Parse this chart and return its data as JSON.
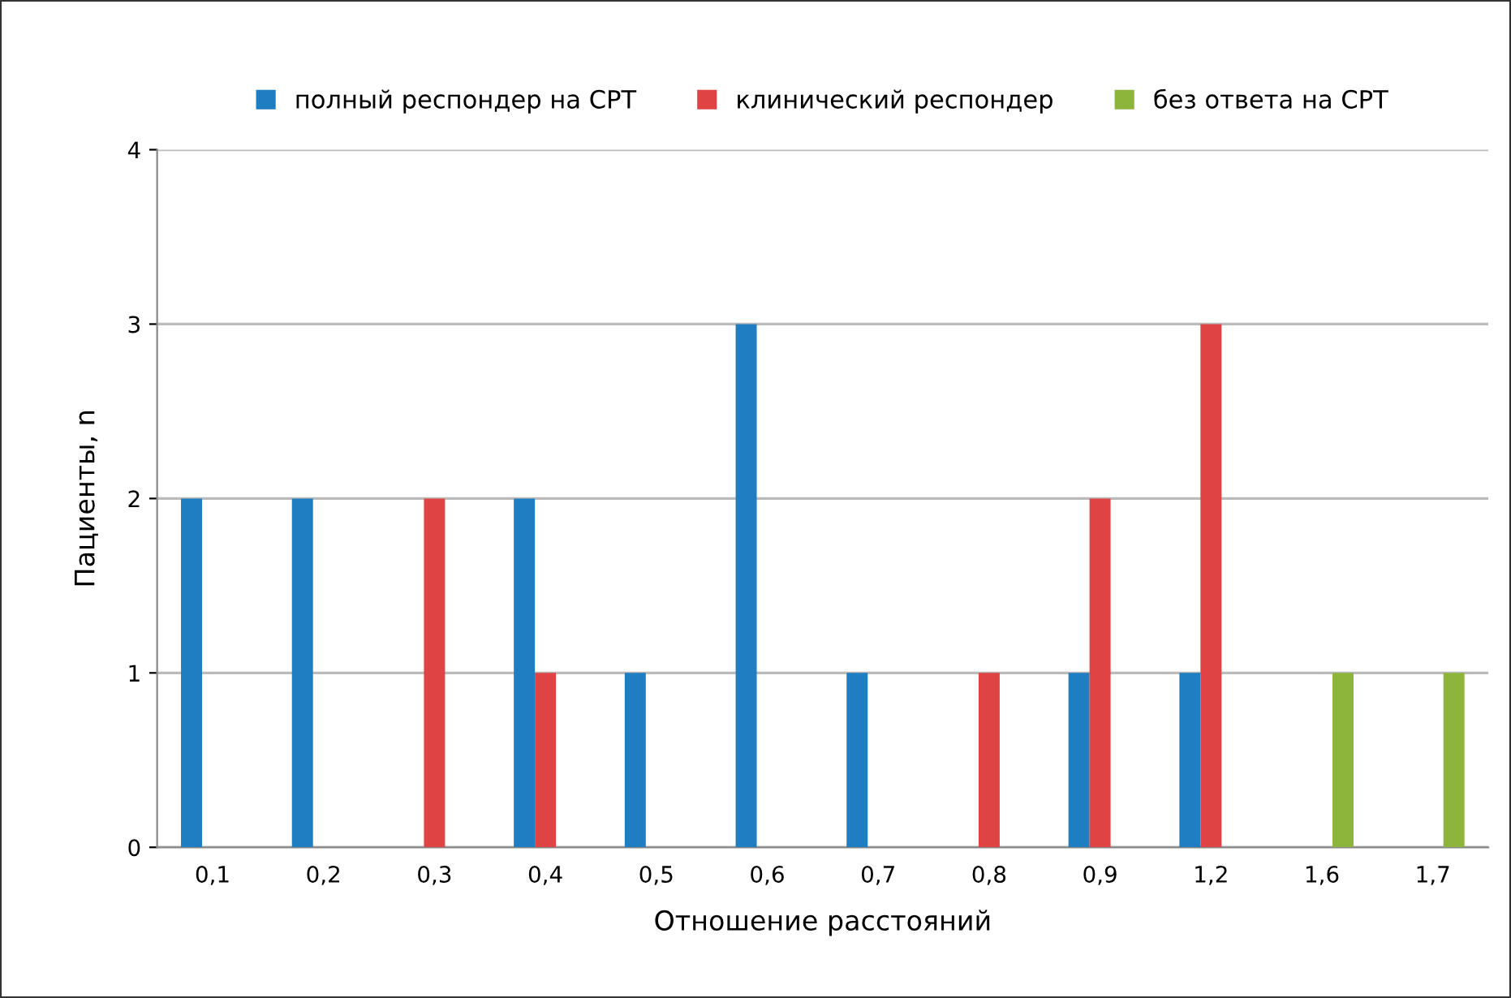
{
  "chart_data": {
    "type": "bar",
    "xlabel": "Отношение расстояний",
    "ylabel": "Пациенты, n",
    "categories": [
      "0,1",
      "0,2",
      "0,3",
      "0,4",
      "0,5",
      "0,6",
      "0,7",
      "0,8",
      "0,9",
      "1,2",
      "1,6",
      "1,7"
    ],
    "series": [
      {
        "name": "полный респондер на СРТ",
        "color": "#1f7ec1",
        "values": [
          2,
          2,
          0,
          2,
          1,
          3,
          1,
          0,
          1,
          1,
          0,
          0
        ]
      },
      {
        "name": "клинический респондер",
        "color": "#e04343",
        "values": [
          0,
          0,
          2,
          1,
          0,
          0,
          0,
          1,
          2,
          3,
          0,
          0
        ]
      },
      {
        "name": "без ответа на СРТ",
        "color": "#8db53c",
        "values": [
          0,
          0,
          0,
          0,
          0,
          0,
          0,
          0,
          0,
          0,
          1,
          1
        ]
      }
    ],
    "ylim": [
      0,
      4
    ],
    "yticks": [
      0,
      1,
      2,
      3,
      4
    ],
    "grid": "y",
    "legend": "top"
  }
}
